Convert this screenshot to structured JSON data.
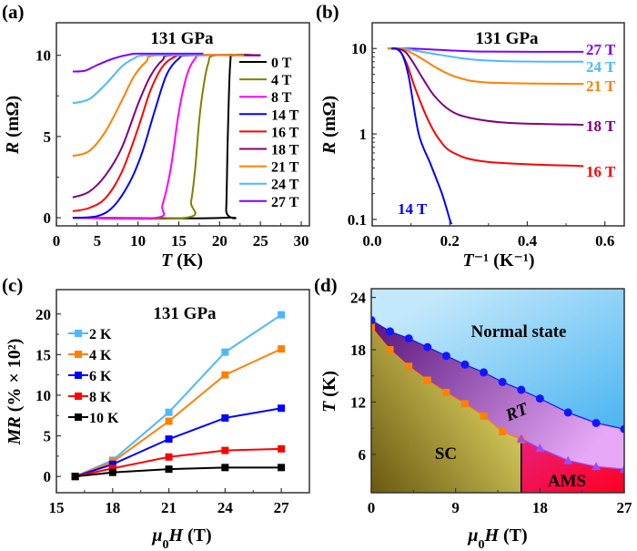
{
  "chart_data": [
    {
      "panel": "(a)",
      "type": "line",
      "title": "131 GPa",
      "xlabel": [
        {
          "text": "T",
          "italic": true
        },
        {
          "text": " (K)",
          "italic": false
        }
      ],
      "ylabel": [
        {
          "text": "R",
          "italic": true
        },
        {
          "text": " (mΩ)",
          "italic": false
        }
      ],
      "xlim": [
        0,
        31
      ],
      "ylim": [
        -0.5,
        12
      ],
      "yscale": "linear",
      "xticks": [
        {
          "v": 0,
          "label": "0"
        },
        {
          "v": 5,
          "label": "5"
        },
        {
          "v": 10,
          "label": "10"
        },
        {
          "v": 15,
          "label": "15"
        },
        {
          "v": 20,
          "label": "20"
        },
        {
          "v": 25,
          "label": "25"
        },
        {
          "v": 30,
          "label": "30"
        }
      ],
      "yticks": [
        {
          "v": 0,
          "label": "0"
        },
        {
          "v": 5,
          "label": "5"
        },
        {
          "v": 10,
          "label": "10"
        }
      ],
      "legend_position": "right",
      "series": [
        {
          "name": "0 T",
          "color": "#000000",
          "points": [
            [
              2,
              0
            ],
            [
              20.5,
              0
            ],
            [
              20.8,
              0.5
            ],
            [
              21,
              5
            ],
            [
              21.3,
              9.5
            ],
            [
              21.8,
              10
            ],
            [
              25,
              10
            ]
          ]
        },
        {
          "name": "4 T",
          "color": "#808000",
          "points": [
            [
              2,
              0
            ],
            [
              15.8,
              0
            ],
            [
              16.5,
              1
            ],
            [
              17,
              3
            ],
            [
              17.5,
              6
            ],
            [
              18,
              8
            ],
            [
              18.6,
              9.5
            ],
            [
              19.5,
              10
            ],
            [
              25,
              10
            ]
          ]
        },
        {
          "name": "8 T",
          "color": "#ff00ff",
          "points": [
            [
              2,
              0
            ],
            [
              12.2,
              0
            ],
            [
              13,
              0.8
            ],
            [
              14,
              3
            ],
            [
              15,
              6.5
            ],
            [
              16,
              8.8
            ],
            [
              17,
              9.8
            ],
            [
              18,
              10
            ],
            [
              25,
              10
            ]
          ]
        },
        {
          "name": "14 T",
          "color": "#0000ff",
          "points": [
            [
              2,
              0
            ],
            [
              5,
              0.1
            ],
            [
              7,
              0.7
            ],
            [
              9,
              2.2
            ],
            [
              10.5,
              4
            ],
            [
              12,
              6.5
            ],
            [
              13.5,
              8.8
            ],
            [
              15,
              9.8
            ],
            [
              16.5,
              10
            ],
            [
              25,
              10
            ]
          ]
        },
        {
          "name": "16 T",
          "color": "#ff0000",
          "points": [
            [
              2,
              0.4
            ],
            [
              4,
              0.6
            ],
            [
              6,
              1.2
            ],
            [
              8,
              2.8
            ],
            [
              10,
              5.5
            ],
            [
              11.5,
              7.8
            ],
            [
              13,
              9.3
            ],
            [
              14.5,
              9.9
            ],
            [
              16,
              10
            ],
            [
              25,
              10
            ]
          ]
        },
        {
          "name": "18 T",
          "color": "#800080",
          "points": [
            [
              2,
              1.25
            ],
            [
              4,
              1.6
            ],
            [
              6,
              2.6
            ],
            [
              8,
              4.3
            ],
            [
              10,
              7
            ],
            [
              11.5,
              8.7
            ],
            [
              13,
              9.7
            ],
            [
              14.5,
              10
            ],
            [
              25,
              10
            ]
          ]
        },
        {
          "name": "21 T",
          "color": "#ff8000",
          "points": [
            [
              2,
              3.8
            ],
            [
              4,
              4.1
            ],
            [
              6,
              5.3
            ],
            [
              8,
              7.2
            ],
            [
              9.5,
              8.7
            ],
            [
              11,
              9.6
            ],
            [
              12.5,
              10
            ],
            [
              23,
              10
            ]
          ]
        },
        {
          "name": "24 T",
          "color": "#4db8ff",
          "points": [
            [
              2,
              7.05
            ],
            [
              4,
              7.3
            ],
            [
              6,
              8.2
            ],
            [
              8,
              9.3
            ],
            [
              9.5,
              9.8
            ],
            [
              11,
              10
            ],
            [
              18,
              10
            ]
          ]
        },
        {
          "name": "27 T",
          "color": "#8000ff",
          "points": [
            [
              2,
              9
            ],
            [
              3.5,
              9.05
            ],
            [
              5,
              9.4
            ],
            [
              7,
              9.8
            ],
            [
              9,
              10.05
            ],
            [
              10.5,
              10.1
            ],
            [
              18,
              10.1
            ]
          ]
        }
      ]
    },
    {
      "panel": "(b)",
      "type": "line",
      "title": "131 GPa",
      "xlabel": [
        {
          "text": "T",
          "italic": true
        },
        {
          "text": "⁻¹ (K⁻¹)",
          "italic": false
        }
      ],
      "ylabel": [
        {
          "text": "R",
          "italic": true
        },
        {
          "text": " (mΩ)",
          "italic": false
        }
      ],
      "xlim": [
        0,
        0.65
      ],
      "ylim": [
        0.084,
        20
      ],
      "yscale": "log",
      "xticks": [
        {
          "v": 0,
          "label": "0.0"
        },
        {
          "v": 0.2,
          "label": "0.2"
        },
        {
          "v": 0.4,
          "label": "0.4"
        },
        {
          "v": 0.6,
          "label": "0.6"
        }
      ],
      "yticks": [
        {
          "v": 0.1,
          "label": "0.1"
        },
        {
          "v": 1,
          "label": "1"
        },
        {
          "v": 10,
          "label": "10"
        }
      ],
      "series": [
        {
          "name": "27 T",
          "color": "#8000ff",
          "points": [
            [
              0.04,
              10
            ],
            [
              0.1,
              10
            ],
            [
              0.2,
              9.5
            ],
            [
              0.3,
              9.2
            ],
            [
              0.545,
              9.15
            ]
          ]
        },
        {
          "name": "24 T",
          "color": "#4db8ff",
          "points": [
            [
              0.04,
              10
            ],
            [
              0.08,
              10
            ],
            [
              0.15,
              8.8
            ],
            [
              0.25,
              7.5
            ],
            [
              0.35,
              7.1
            ],
            [
              0.545,
              7.0
            ]
          ]
        },
        {
          "name": "21 T",
          "color": "#ff8000",
          "points": [
            [
              0.04,
              10
            ],
            [
              0.08,
              9.8
            ],
            [
              0.12,
              8
            ],
            [
              0.17,
              5.8
            ],
            [
              0.22,
              4.6
            ],
            [
              0.3,
              4.0
            ],
            [
              0.545,
              3.85
            ]
          ]
        },
        {
          "name": "18 T",
          "color": "#800080",
          "points": [
            [
              0.05,
              10
            ],
            [
              0.08,
              9.5
            ],
            [
              0.1,
              7.5
            ],
            [
              0.13,
              4.5
            ],
            [
              0.16,
              2.8
            ],
            [
              0.2,
              1.9
            ],
            [
              0.25,
              1.55
            ],
            [
              0.35,
              1.35
            ],
            [
              0.545,
              1.28
            ]
          ]
        },
        {
          "name": "16 T",
          "color": "#ff0000",
          "points": [
            [
              0.05,
              10
            ],
            [
              0.07,
              9.5
            ],
            [
              0.09,
              6.5
            ],
            [
              0.11,
              3.5
            ],
            [
              0.14,
              1.6
            ],
            [
              0.17,
              0.9
            ],
            [
              0.21,
              0.6
            ],
            [
              0.3,
              0.47
            ],
            [
              0.545,
              0.42
            ]
          ]
        },
        {
          "name": "14 T",
          "color": "#0000ff",
          "points": [
            [
              0.05,
              10
            ],
            [
              0.065,
              9.8
            ],
            [
              0.08,
              8
            ],
            [
              0.095,
              4.5
            ],
            [
              0.12,
              1.0
            ],
            [
              0.15,
              0.45
            ],
            [
              0.18,
              0.2
            ],
            [
              0.2,
              0.1
            ],
            [
              0.205,
              0.088
            ]
          ]
        }
      ]
    },
    {
      "panel": "(c)",
      "type": "line",
      "title": "131 GPa",
      "xlabel": [
        {
          "text": "μ",
          "italic": true
        },
        {
          "text": "0",
          "sub": true
        },
        {
          "text": "H",
          "italic": true
        },
        {
          "text": " (T)",
          "italic": false
        }
      ],
      "ylabel": [
        {
          "text": "MR",
          "italic": true
        },
        {
          "text": " (% × 10²)",
          "italic": false
        }
      ],
      "xlim": [
        15,
        28.5
      ],
      "ylim": [
        -2,
        23
      ],
      "yscale": "linear",
      "xticks": [
        {
          "v": 15,
          "label": "15"
        },
        {
          "v": 18,
          "label": "18"
        },
        {
          "v": 21,
          "label": "21"
        },
        {
          "v": 24,
          "label": "24"
        },
        {
          "v": 27,
          "label": "27"
        }
      ],
      "yticks": [
        {
          "v": 0,
          "label": "0"
        },
        {
          "v": 5,
          "label": "5"
        },
        {
          "v": 10,
          "label": "10"
        },
        {
          "v": 15,
          "label": "15"
        },
        {
          "v": 20,
          "label": "20"
        }
      ],
      "legend_position": "top-left",
      "x": [
        16,
        18,
        21,
        24,
        27
      ],
      "series": [
        {
          "name": "2 K",
          "color": "#4db8ff",
          "values": [
            0,
            2.0,
            7.9,
            15.3,
            19.9
          ]
        },
        {
          "name": "4 K",
          "color": "#ff8000",
          "values": [
            0,
            1.8,
            6.8,
            12.5,
            15.7
          ]
        },
        {
          "name": "6 K",
          "color": "#0000ff",
          "values": [
            0,
            1.5,
            4.6,
            7.2,
            8.4
          ]
        },
        {
          "name": "8 K",
          "color": "#ff0000",
          "values": [
            0,
            1.0,
            2.4,
            3.2,
            3.4
          ]
        },
        {
          "name": "10 K",
          "color": "#000000",
          "values": [
            0,
            0.5,
            0.9,
            1.1,
            1.1
          ]
        }
      ]
    },
    {
      "panel": "(d)",
      "type": "scatter",
      "xlabel": [
        {
          "text": "μ",
          "italic": true
        },
        {
          "text": "0",
          "sub": true
        },
        {
          "text": "H",
          "italic": true
        },
        {
          "text": " (T)",
          "italic": false
        }
      ],
      "ylabel": [
        {
          "text": "T",
          "italic": true
        },
        {
          "text": " (K)",
          "italic": false
        }
      ],
      "xlim": [
        0,
        27
      ],
      "ylim": [
        1.6,
        25
      ],
      "yscale": "linear",
      "xticks": [
        {
          "v": 0,
          "label": "0"
        },
        {
          "v": 9,
          "label": "9"
        },
        {
          "v": 18,
          "label": "18"
        },
        {
          "v": 27,
          "label": "27"
        }
      ],
      "yticks": [
        {
          "v": 6,
          "label": "6"
        },
        {
          "v": 12,
          "label": "12"
        },
        {
          "v": 18,
          "label": "18"
        },
        {
          "v": 24,
          "label": "24"
        }
      ],
      "regions": [
        {
          "name": "Normal state",
          "colors": [
            "#c4e8fb",
            "#3aaef0"
          ]
        },
        {
          "name": "RT",
          "colors": [
            "#5e1a80",
            "#e6a8f6"
          ]
        },
        {
          "name": "SC",
          "colors": [
            "#6b5810",
            "#eee66e"
          ]
        },
        {
          "name": "AMS",
          "colors": [
            "#e8207a",
            "#ff0020"
          ]
        }
      ],
      "series": [
        {
          "marker": "circle",
          "color": "#1414ff",
          "points": [
            [
              0,
              21.4
            ],
            [
              2,
              20.1
            ],
            [
              4,
              19.3
            ],
            [
              6,
              18.3
            ],
            [
              8,
              17.3
            ],
            [
              10,
              16.3
            ],
            [
              12,
              15.4
            ],
            [
              14,
              14.3
            ],
            [
              16,
              13.4
            ],
            [
              18,
              12.4
            ],
            [
              21,
              10.8
            ],
            [
              24,
              9.6
            ],
            [
              27,
              8.9
            ]
          ]
        },
        {
          "marker": "square",
          "color": "#ff8000",
          "points": [
            [
              0,
              20.6
            ],
            [
              2,
              18.0
            ],
            [
              4,
              16.1
            ],
            [
              6,
              14.5
            ],
            [
              8,
              13.1
            ],
            [
              10,
              11.8
            ],
            [
              12,
              10.4
            ],
            [
              14,
              8.6
            ],
            [
              16,
              7.7
            ]
          ]
        },
        {
          "marker": "triangle",
          "color": "#9b4dff",
          "points": [
            [
              16,
              7.8
            ],
            [
              18,
              6.7
            ],
            [
              21,
              5.3
            ],
            [
              24,
              4.6
            ],
            [
              27,
              4.3
            ]
          ]
        }
      ]
    }
  ]
}
